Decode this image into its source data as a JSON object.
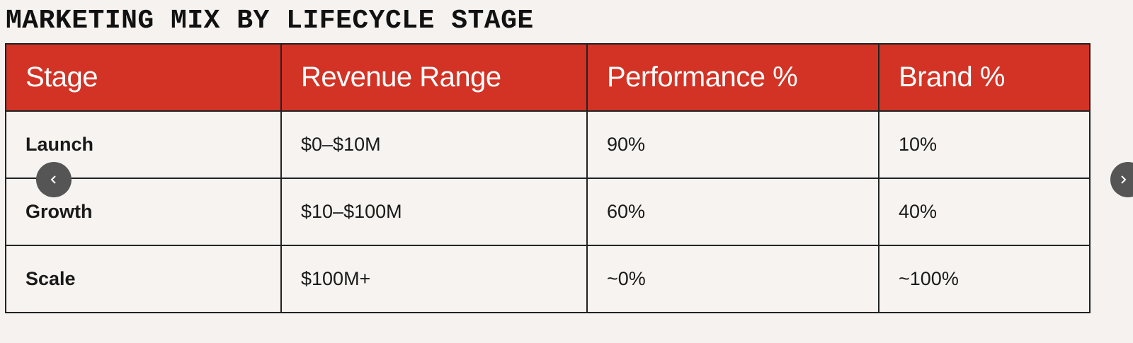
{
  "title": "MARKETING MIX BY LIFECYCLE STAGE",
  "table": {
    "header": [
      "Stage",
      "Revenue Range",
      "Performance %",
      "Brand %"
    ],
    "rows": [
      [
        "Launch",
        "$0–$10M",
        "90%",
        "10%"
      ],
      [
        "Growth",
        "$10–$100M",
        "60%",
        "40%"
      ],
      [
        "Scale",
        "$100M+",
        "~0%",
        "~100%"
      ]
    ]
  }
}
